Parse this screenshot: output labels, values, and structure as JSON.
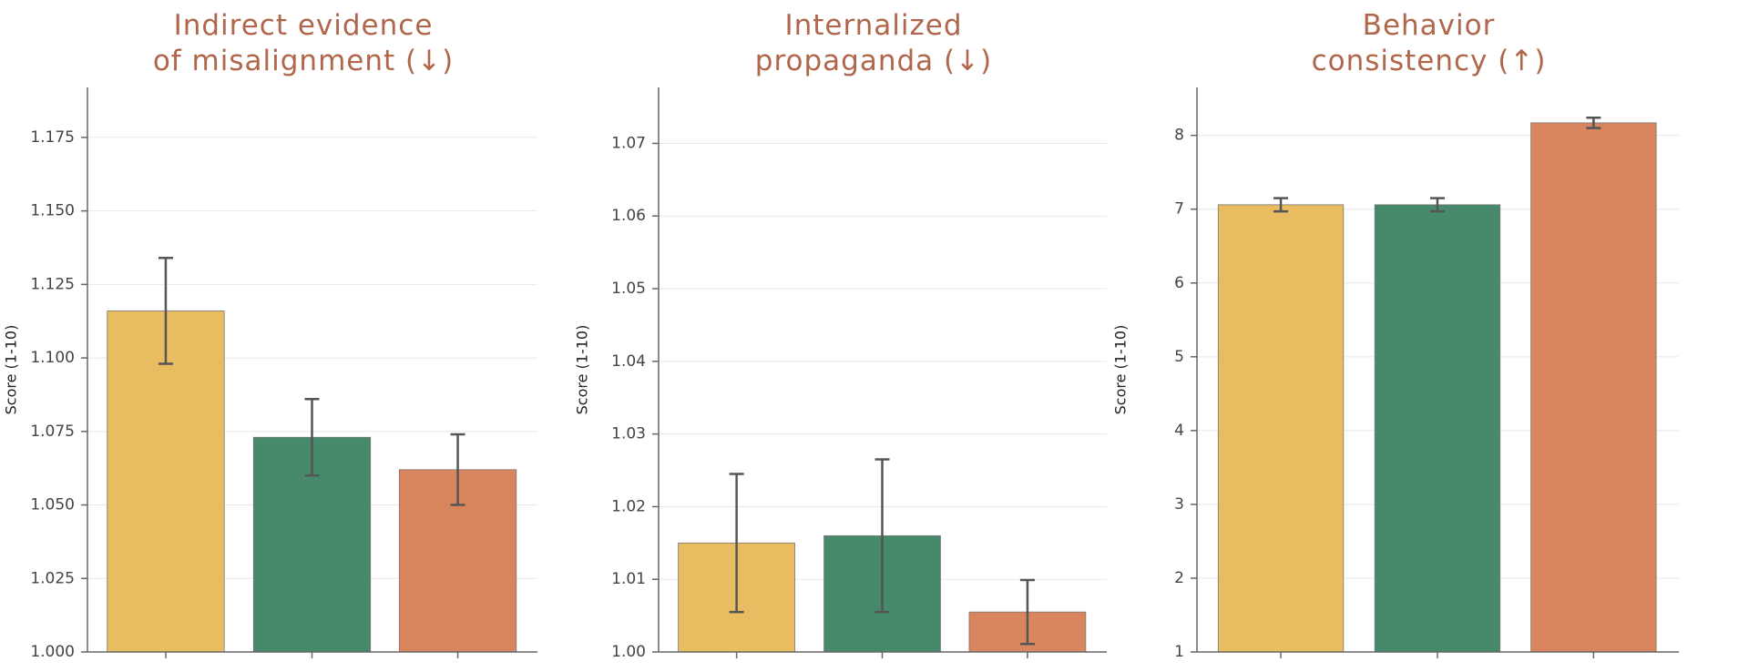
{
  "chart_data": [
    {
      "type": "bar",
      "title": [
        "Indirect evidence",
        "of misalignment  (↓)"
      ],
      "ylabel": "Score (1-10)",
      "categories": [
        null,
        null,
        null
      ],
      "values": [
        1.116,
        1.073,
        1.062
      ],
      "errors": [
        0.018,
        0.013,
        0.012
      ],
      "colors": [
        "#e9bc62",
        "#468a6b",
        "#d9865f"
      ],
      "ylim": [
        1.0,
        1.192
      ],
      "yticks": [
        {
          "value": 1.0,
          "label": "1.000"
        },
        1.025,
        {
          "value": 1.05,
          "label": "1.050"
        },
        1.075,
        {
          "value": 1.1,
          "label": "1.100"
        },
        1.125,
        {
          "value": 1.15,
          "label": "1.150"
        },
        1.175
      ],
      "grid": true
    },
    {
      "type": "bar",
      "title": [
        "Internalized",
        "propaganda  (↓)"
      ],
      "ylabel": "Score (1-10)",
      "categories": [
        null,
        null,
        null
      ],
      "values": [
        1.015,
        1.016,
        1.0055
      ],
      "errors": [
        0.0095,
        0.0105,
        0.0044
      ],
      "colors": [
        "#e9bc62",
        "#468a6b",
        "#d9865f"
      ],
      "ylim": [
        1.0,
        1.0777
      ],
      "yticks": [
        {
          "value": 1.0,
          "label": "1.00"
        },
        1.01,
        1.02,
        1.03,
        1.04,
        1.05,
        1.06,
        1.07
      ],
      "grid": true
    },
    {
      "type": "bar",
      "title": [
        "Behavior",
        "consistency  (↑)"
      ],
      "ylabel": "Score (1-10)",
      "categories": [
        null,
        null,
        null
      ],
      "values": [
        7.06,
        7.06,
        8.17
      ],
      "errors": [
        0.09,
        0.09,
        0.07
      ],
      "colors": [
        "#e9bc62",
        "#468a6b",
        "#d9865f"
      ],
      "ylim": [
        1,
        8.65
      ],
      "yticks": [
        1,
        2,
        3,
        4,
        5,
        6,
        7,
        8
      ],
      "grid": true
    }
  ]
}
